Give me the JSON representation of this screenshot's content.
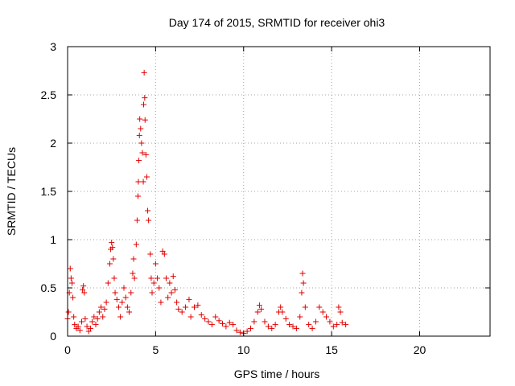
{
  "chart_data": {
    "type": "scatter",
    "title": "Day 174 of 2015, SRMTID for receiver ohi3",
    "xlabel": "GPS time / hours",
    "ylabel": "SRMTID / TECUs",
    "xlim": [
      0,
      24
    ],
    "ylim": [
      0,
      3
    ],
    "xticks": [
      0,
      5,
      10,
      15,
      20
    ],
    "yticks": [
      0,
      0.5,
      1,
      1.5,
      2,
      2.5,
      3
    ],
    "xtick_labels": [
      "0",
      "5",
      "10",
      "15",
      "20"
    ],
    "ytick_labels": [
      "0",
      "0.5",
      "1",
      "1.5",
      "2",
      "2.5",
      "3"
    ],
    "grid": true,
    "marker": "plus",
    "series": [
      {
        "name": "SRMTID",
        "color": "#e00000",
        "points": [
          [
            0.0,
            0.18
          ],
          [
            0.05,
            0.25
          ],
          [
            0.1,
            0.45
          ],
          [
            0.15,
            0.7
          ],
          [
            0.2,
            0.6
          ],
          [
            0.25,
            0.55
          ],
          [
            0.3,
            0.4
          ],
          [
            0.35,
            0.2
          ],
          [
            0.4,
            0.12
          ],
          [
            0.5,
            0.08
          ],
          [
            0.6,
            0.1
          ],
          [
            0.7,
            0.06
          ],
          [
            0.8,
            0.15
          ],
          [
            0.85,
            0.48
          ],
          [
            0.9,
            0.52
          ],
          [
            0.95,
            0.45
          ],
          [
            1.0,
            0.18
          ],
          [
            1.1,
            0.1
          ],
          [
            1.2,
            0.05
          ],
          [
            1.3,
            0.08
          ],
          [
            1.4,
            0.15
          ],
          [
            1.5,
            0.2
          ],
          [
            1.6,
            0.12
          ],
          [
            1.7,
            0.18
          ],
          [
            1.8,
            0.25
          ],
          [
            1.9,
            0.3
          ],
          [
            2.0,
            0.2
          ],
          [
            2.1,
            0.28
          ],
          [
            2.2,
            0.35
          ],
          [
            2.3,
            0.55
          ],
          [
            2.4,
            0.75
          ],
          [
            2.45,
            0.9
          ],
          [
            2.5,
            0.97
          ],
          [
            2.55,
            0.92
          ],
          [
            2.6,
            0.8
          ],
          [
            2.65,
            0.6
          ],
          [
            2.7,
            0.45
          ],
          [
            2.8,
            0.38
          ],
          [
            2.9,
            0.3
          ],
          [
            3.0,
            0.2
          ],
          [
            3.1,
            0.35
          ],
          [
            3.2,
            0.5
          ],
          [
            3.3,
            0.4
          ],
          [
            3.4,
            0.3
          ],
          [
            3.5,
            0.25
          ],
          [
            3.6,
            0.45
          ],
          [
            3.7,
            0.65
          ],
          [
            3.75,
            0.8
          ],
          [
            3.8,
            0.6
          ],
          [
            3.9,
            0.95
          ],
          [
            3.95,
            1.2
          ],
          [
            4.0,
            1.45
          ],
          [
            4.02,
            1.6
          ],
          [
            4.05,
            1.82
          ],
          [
            4.08,
            2.08
          ],
          [
            4.1,
            2.25
          ],
          [
            4.15,
            2.15
          ],
          [
            4.2,
            2.0
          ],
          [
            4.25,
            1.9
          ],
          [
            4.3,
            1.6
          ],
          [
            4.32,
            2.4
          ],
          [
            4.35,
            2.73
          ],
          [
            4.38,
            2.47
          ],
          [
            4.4,
            2.24
          ],
          [
            4.45,
            1.88
          ],
          [
            4.5,
            1.65
          ],
          [
            4.55,
            1.3
          ],
          [
            4.6,
            1.2
          ],
          [
            4.7,
            0.85
          ],
          [
            4.75,
            0.6
          ],
          [
            4.8,
            0.45
          ],
          [
            4.9,
            0.55
          ],
          [
            5.0,
            0.75
          ],
          [
            5.1,
            0.6
          ],
          [
            5.2,
            0.5
          ],
          [
            5.3,
            0.35
          ],
          [
            5.4,
            0.88
          ],
          [
            5.5,
            0.85
          ],
          [
            5.6,
            0.6
          ],
          [
            5.7,
            0.4
          ],
          [
            5.8,
            0.55
          ],
          [
            5.9,
            0.45
          ],
          [
            6.0,
            0.62
          ],
          [
            6.1,
            0.48
          ],
          [
            6.2,
            0.35
          ],
          [
            6.3,
            0.28
          ],
          [
            6.5,
            0.25
          ],
          [
            6.7,
            0.3
          ],
          [
            6.9,
            0.38
          ],
          [
            7.0,
            0.2
          ],
          [
            7.2,
            0.3
          ],
          [
            7.4,
            0.32
          ],
          [
            7.6,
            0.22
          ],
          [
            7.8,
            0.18
          ],
          [
            8.0,
            0.15
          ],
          [
            8.2,
            0.12
          ],
          [
            8.4,
            0.2
          ],
          [
            8.6,
            0.16
          ],
          [
            8.8,
            0.13
          ],
          [
            9.0,
            0.1
          ],
          [
            9.2,
            0.14
          ],
          [
            9.4,
            0.12
          ],
          [
            9.6,
            0.06
          ],
          [
            9.8,
            0.04
          ],
          [
            10.0,
            0.03
          ],
          [
            10.2,
            0.05
          ],
          [
            10.4,
            0.08
          ],
          [
            10.6,
            0.15
          ],
          [
            10.8,
            0.25
          ],
          [
            10.9,
            0.32
          ],
          [
            11.0,
            0.28
          ],
          [
            11.2,
            0.15
          ],
          [
            11.4,
            0.1
          ],
          [
            11.6,
            0.08
          ],
          [
            11.8,
            0.12
          ],
          [
            12.0,
            0.25
          ],
          [
            12.1,
            0.3
          ],
          [
            12.2,
            0.25
          ],
          [
            12.4,
            0.18
          ],
          [
            12.6,
            0.12
          ],
          [
            12.8,
            0.1
          ],
          [
            13.0,
            0.08
          ],
          [
            13.2,
            0.2
          ],
          [
            13.3,
            0.45
          ],
          [
            13.35,
            0.65
          ],
          [
            13.4,
            0.55
          ],
          [
            13.5,
            0.3
          ],
          [
            13.7,
            0.12
          ],
          [
            13.9,
            0.08
          ],
          [
            14.1,
            0.15
          ],
          [
            14.3,
            0.3
          ],
          [
            14.5,
            0.25
          ],
          [
            14.7,
            0.2
          ],
          [
            14.9,
            0.15
          ],
          [
            15.1,
            0.1
          ],
          [
            15.3,
            0.12
          ],
          [
            15.4,
            0.3
          ],
          [
            15.5,
            0.25
          ],
          [
            15.6,
            0.14
          ],
          [
            15.8,
            0.12
          ]
        ]
      }
    ]
  }
}
